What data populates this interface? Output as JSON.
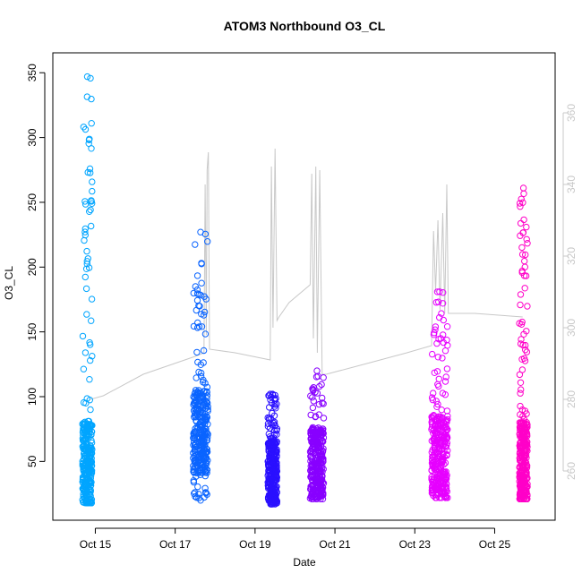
{
  "chart_data": {
    "type": "scatter",
    "title": "ATOM3 Northbound O3_CL",
    "xlabel": "Date",
    "ylabel": "O3_CL",
    "x_ticks": [
      {
        "label": "Oct 15",
        "day": 15
      },
      {
        "label": "Oct 17",
        "day": 17
      },
      {
        "label": "Oct 19",
        "day": 19
      },
      {
        "label": "Oct 21",
        "day": 21
      },
      {
        "label": "Oct 23",
        "day": 23
      },
      {
        "label": "Oct 25",
        "day": 25
      }
    ],
    "xlim": [
      14.25,
      26.2
    ],
    "ylim": [
      15,
      355
    ],
    "y_ticks": [
      50,
      100,
      150,
      200,
      250,
      300,
      350
    ],
    "y2lim": [
      250,
      373
    ],
    "y2_ticks": [
      260,
      280,
      300,
      320,
      340,
      360
    ],
    "grid": false,
    "legend": "none",
    "scatter_clusters": [
      {
        "color": "#00A5FF",
        "x_start": 14.68,
        "x_end": 14.92,
        "y_min": 18,
        "y_max": 347,
        "y_core": 45
      },
      {
        "color": "#0A64FF",
        "x_start": 17.45,
        "x_end": 17.82,
        "y_min": 20,
        "y_max": 227,
        "y_core": 70
      },
      {
        "color": "#2A10FF",
        "x_start": 19.32,
        "x_end": 19.55,
        "y_min": 17,
        "y_max": 102,
        "y_core": 40
      },
      {
        "color": "#8800FF",
        "x_start": 20.38,
        "x_end": 20.72,
        "y_min": 21,
        "y_max": 120,
        "y_core": 45
      },
      {
        "color": "#E600FF",
        "x_start": 23.42,
        "x_end": 23.82,
        "y_min": 22,
        "y_max": 181,
        "y_core": 50
      },
      {
        "color": "#FF00C8",
        "x_start": 25.62,
        "x_end": 25.82,
        "y_min": 21,
        "y_max": 261,
        "y_core": 45
      }
    ],
    "secondary_series": {
      "color": "#c8c8c8",
      "axis": "right",
      "points": [
        {
          "x": 14.88,
          "y": 280
        },
        {
          "x": 15.2,
          "y": 281
        },
        {
          "x": 16.2,
          "y": 287
        },
        {
          "x": 17.5,
          "y": 292
        },
        {
          "x": 17.72,
          "y": 293
        },
        {
          "x": 17.75,
          "y": 340
        },
        {
          "x": 17.78,
          "y": 298
        },
        {
          "x": 17.8,
          "y": 344
        },
        {
          "x": 17.83,
          "y": 349
        },
        {
          "x": 17.86,
          "y": 294
        },
        {
          "x": 18.5,
          "y": 293
        },
        {
          "x": 19.38,
          "y": 291
        },
        {
          "x": 19.41,
          "y": 345
        },
        {
          "x": 19.45,
          "y": 300
        },
        {
          "x": 19.5,
          "y": 350
        },
        {
          "x": 19.55,
          "y": 302
        },
        {
          "x": 19.6,
          "y": 303
        },
        {
          "x": 19.85,
          "y": 307
        },
        {
          "x": 20.38,
          "y": 312
        },
        {
          "x": 20.42,
          "y": 343
        },
        {
          "x": 20.46,
          "y": 297
        },
        {
          "x": 20.52,
          "y": 345
        },
        {
          "x": 20.56,
          "y": 293
        },
        {
          "x": 20.62,
          "y": 344
        },
        {
          "x": 20.68,
          "y": 287
        },
        {
          "x": 20.78,
          "y": 287
        },
        {
          "x": 21.8,
          "y": 290
        },
        {
          "x": 22.8,
          "y": 293
        },
        {
          "x": 23.42,
          "y": 295
        },
        {
          "x": 23.47,
          "y": 327
        },
        {
          "x": 23.52,
          "y": 310
        },
        {
          "x": 23.58,
          "y": 330
        },
        {
          "x": 23.63,
          "y": 305
        },
        {
          "x": 23.7,
          "y": 332
        },
        {
          "x": 23.75,
          "y": 304
        },
        {
          "x": 23.8,
          "y": 340
        },
        {
          "x": 23.84,
          "y": 304
        },
        {
          "x": 24.5,
          "y": 304
        },
        {
          "x": 25.7,
          "y": 303
        }
      ]
    }
  }
}
